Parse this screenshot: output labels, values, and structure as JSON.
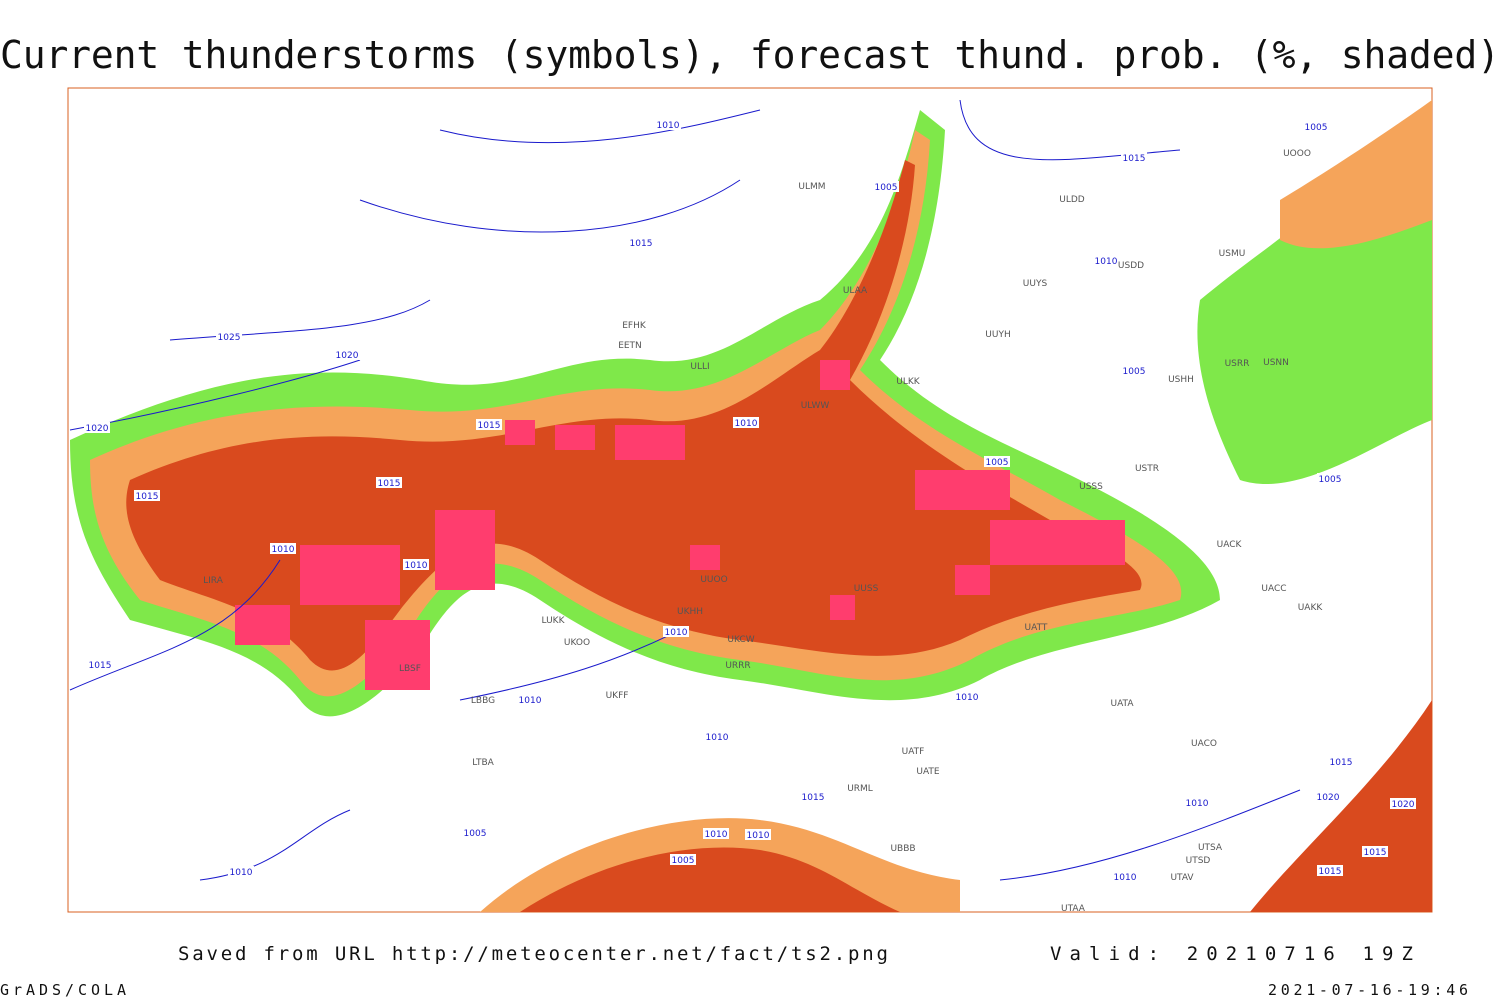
{
  "header": {
    "title": "Current thunderstorms (symbols), forecast thund. prob. (%, shaded)"
  },
  "map": {
    "isobar_labels": [
      "1010",
      "1005",
      "1015",
      "1005",
      "1015",
      "1010",
      "1025",
      "1020",
      "1005",
      "1020",
      "1015",
      "1010",
      "1005",
      "1015",
      "1015",
      "1005",
      "1010",
      "1010",
      "1010",
      "1015",
      "1010",
      "1010",
      "1010",
      "1015",
      "1015",
      "1010",
      "1020",
      "1020",
      "1005",
      "1010",
      "1010",
      "1005",
      "1015",
      "1015",
      "1010",
      "1010"
    ],
    "station_labels": [
      "ULDD",
      "UUYS",
      "UUYH",
      "USMU",
      "ULAA",
      "EFHK",
      "EETN",
      "ULKK",
      "ULWW",
      "USHH",
      "USNN",
      "USRR",
      "USTR",
      "USSS",
      "UACC",
      "UAKK",
      "UACK",
      "UATT",
      "UATA",
      "UACO",
      "UATE",
      "UATF",
      "URML",
      "UBBB",
      "UTSA",
      "UTSD",
      "UTAV",
      "UTAA",
      "URRR",
      "LUKK",
      "UKOO",
      "UKFF",
      "LBBG",
      "LBSF",
      "LIRA",
      "LTBA",
      "UUOO",
      "UKHH",
      "UKCW",
      "UUSS",
      "ULLI",
      "USDD",
      "UOOO",
      "ULMM"
    ]
  },
  "footer": {
    "source": "Saved from URL http://meteocenter.net/fact/ts2.png",
    "valid": "Valid: 20210716 19Z",
    "software": "GrADS/COLA",
    "timestamp": "2021-07-16-19:46"
  }
}
